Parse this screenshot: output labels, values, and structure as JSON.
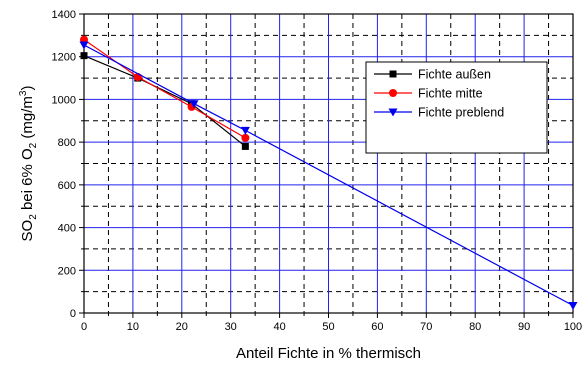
{
  "chart_data": {
    "type": "line",
    "xlabel": "Anteil Fichte in % thermisch",
    "ylabel_parts": [
      {
        "text": "SO",
        "shift": "base"
      },
      {
        "text": "2",
        "shift": "sub"
      },
      {
        "text": " bei 6% O",
        "shift": "base"
      },
      {
        "text": "2",
        "shift": "sub"
      },
      {
        "text": " (mg/m",
        "shift": "base"
      },
      {
        "text": "3",
        "shift": "super"
      },
      {
        "text": ")",
        "shift": "base"
      }
    ],
    "xlim": [
      0,
      100
    ],
    "ylim": [
      0,
      1400
    ],
    "x_ticks": [
      "0",
      "10",
      "20",
      "30",
      "40",
      "50",
      "60",
      "70",
      "80",
      "90",
      "100"
    ],
    "y_ticks": [
      "0",
      "200",
      "400",
      "600",
      "800",
      "1000",
      "1200",
      "1400"
    ],
    "grid": true,
    "legend_position": "top-right",
    "colors": {
      "major_grid": "#2222ee",
      "minor_grid": "#000000",
      "frame": "#000000"
    },
    "series": [
      {
        "name": "Fichte außen",
        "color": "#000000",
        "marker": "square",
        "x": [
          0,
          11,
          22,
          33
        ],
        "y": [
          1205,
          1100,
          980,
          780
        ]
      },
      {
        "name": "Fichte mitte",
        "color": "#ff0000",
        "marker": "circle",
        "x": [
          0,
          11,
          22,
          33
        ],
        "y": [
          1280,
          1105,
          965,
          820
        ]
      },
      {
        "name": "Fichte preblend",
        "color": "#0000ee",
        "marker": "triangle-down",
        "x": [
          0,
          22.5,
          33,
          100
        ],
        "y": [
          1255,
          980,
          855,
          35
        ]
      }
    ]
  }
}
